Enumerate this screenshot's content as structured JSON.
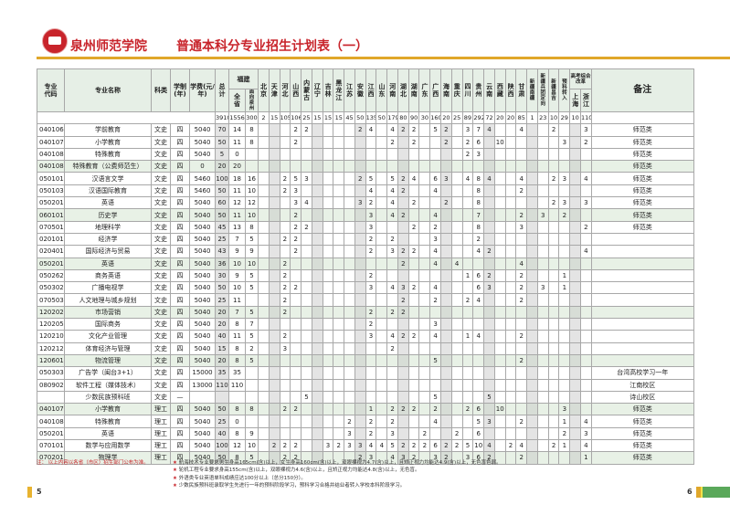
{
  "header": {
    "school": "泉州师范学院",
    "title": "普通本科分专业招生计划表（一）"
  },
  "columns": {
    "code": "专业代码",
    "name": "专业名称",
    "type": "科类",
    "years": "学制(年)",
    "fee": "学费(元/年)",
    "total": "总计",
    "fujian": "福建",
    "fujian_all": "全省",
    "fujian_qz": "面向泉州",
    "provinces": [
      "北京",
      "天津",
      "河北",
      "山西",
      "内蒙古",
      "辽宁",
      "吉林",
      "黑龙江",
      "江苏",
      "安徽",
      "江西",
      "山东",
      "河南",
      "湖北",
      "湖南",
      "广东",
      "广西",
      "海南",
      "重庆",
      "四川",
      "贵州",
      "云南",
      "西藏",
      "陕西",
      "甘肃",
      "新疆南疆",
      "新疆兵团定向",
      "新疆昌吉",
      "预科转入"
    ],
    "reform": "高考综合改革",
    "shanghai": "上海",
    "zhejiang": "浙江",
    "note": "备注"
  },
  "totals": [
    "3910",
    "1556",
    "300",
    "2",
    "15",
    "105",
    "106",
    "25",
    "15",
    "15",
    "15",
    "45",
    "50",
    "135",
    "50",
    "179",
    "80",
    "90",
    "30",
    "160",
    "20",
    "25",
    "89",
    "292",
    "72",
    "20",
    "20",
    "85",
    "1",
    "23",
    "10",
    "29",
    "10",
    "110"
  ],
  "rows": [
    {
      "code": "040106",
      "name": "学前教育",
      "type": "文史",
      "years": "四",
      "fee": "5040",
      "v": [
        "70",
        "14",
        "8",
        "",
        "",
        "",
        "2",
        "2",
        "",
        "",
        "",
        "",
        "2",
        "4",
        "",
        "4",
        "2",
        "2",
        "",
        "5",
        "2",
        "",
        "3",
        "7",
        "4",
        "",
        "",
        "4",
        "",
        "",
        "2",
        "",
        "",
        "3"
      ],
      "note": "师范类"
    },
    {
      "code": "040107",
      "name": "小学教育",
      "type": "文史",
      "years": "四",
      "fee": "5040",
      "v": [
        "50",
        "11",
        "8",
        "",
        "",
        "",
        "2",
        "",
        "",
        "",
        "",
        "",
        "",
        "",
        "",
        "2",
        "",
        "2",
        "",
        "",
        "2",
        "",
        "2",
        "6",
        "",
        "10",
        "",
        "",
        "",
        "",
        "",
        "3",
        "",
        "2"
      ],
      "note": "师范类"
    },
    {
      "code": "040108",
      "name": "特殊教育",
      "type": "文史",
      "years": "四",
      "fee": "5040",
      "v": [
        "5",
        "0",
        "",
        "",
        "",
        "",
        "",
        "",
        "",
        "",
        "",
        "",
        "",
        "",
        "",
        "",
        "",
        "",
        "",
        "",
        "",
        "",
        "2",
        "3",
        "",
        "",
        "",
        "",
        "",
        "",
        "",
        "",
        "",
        ""
      ],
      "note": "师范类"
    },
    {
      "code": "040108",
      "name": "特殊教育（公费师范生）",
      "type": "文史",
      "years": "四",
      "fee": "0",
      "v": [
        "20",
        "20",
        "",
        "",
        "",
        "",
        "",
        "",
        "",
        "",
        "",
        "",
        "",
        "",
        "",
        "",
        "",
        "",
        "",
        "",
        "",
        "",
        "",
        "",
        "",
        "",
        "",
        "",
        "",
        "",
        "",
        "",
        "",
        ""
      ],
      "note": "师范类",
      "green": true
    },
    {
      "code": "050101",
      "name": "汉语言文学",
      "type": "文史",
      "years": "四",
      "fee": "5460",
      "v": [
        "100",
        "18",
        "16",
        "",
        "",
        "2",
        "5",
        "3",
        "",
        "",
        "",
        "",
        "2",
        "5",
        "",
        "5",
        "2",
        "4",
        "",
        "6",
        "3",
        "",
        "4",
        "8",
        "4",
        "",
        "",
        "4",
        "",
        "",
        "2",
        "3",
        "",
        "4"
      ],
      "note": "师范类"
    },
    {
      "code": "050103",
      "name": "汉语国际教育",
      "type": "文史",
      "years": "四",
      "fee": "5460",
      "v": [
        "50",
        "11",
        "10",
        "",
        "",
        "2",
        "3",
        "",
        "",
        "",
        "",
        "",
        "",
        "4",
        "",
        "4",
        "2",
        "",
        "",
        "4",
        "",
        "",
        "",
        "8",
        "",
        "",
        "",
        "2",
        "",
        "",
        "",
        "",
        "",
        ""
      ],
      "note": "师范类"
    },
    {
      "code": "050201",
      "name": "英语",
      "type": "文史",
      "years": "四",
      "fee": "5040",
      "v": [
        "60",
        "12",
        "12",
        "",
        "",
        "",
        "3",
        "4",
        "",
        "",
        "",
        "",
        "3",
        "2",
        "",
        "4",
        "",
        "2",
        "",
        "",
        "2",
        "",
        "",
        "8",
        "",
        "",
        "",
        "",
        "",
        "",
        "2",
        "3",
        "",
        "3"
      ],
      "note": "师范类"
    },
    {
      "code": "060101",
      "name": "历史学",
      "type": "文史",
      "years": "四",
      "fee": "5040",
      "v": [
        "50",
        "11",
        "10",
        "",
        "",
        "",
        "2",
        "",
        "",
        "",
        "",
        "",
        "",
        "3",
        "",
        "4",
        "2",
        "",
        "",
        "4",
        "",
        "",
        "",
        "7",
        "",
        "",
        "",
        "2",
        "",
        "3",
        "",
        "2",
        "",
        ""
      ],
      "note": "师范类",
      "green": true
    },
    {
      "code": "070501",
      "name": "地理科学",
      "type": "文史",
      "years": "四",
      "fee": "5040",
      "v": [
        "45",
        "13",
        "8",
        "",
        "",
        "",
        "2",
        "2",
        "",
        "",
        "",
        "",
        "",
        "3",
        "",
        "",
        "",
        "2",
        "",
        "2",
        "",
        "",
        "",
        "8",
        "",
        "",
        "",
        "3",
        "",
        "",
        "",
        "",
        "",
        "2"
      ],
      "note": "师范类"
    },
    {
      "code": "020101",
      "name": "经济学",
      "type": "文史",
      "years": "四",
      "fee": "5040",
      "v": [
        "25",
        "7",
        "5",
        "",
        "",
        "2",
        "2",
        "",
        "",
        "",
        "",
        "",
        "",
        "2",
        "",
        "2",
        "",
        "",
        "",
        "3",
        "",
        "",
        "",
        "2",
        "",
        "",
        "",
        "",
        "",
        "",
        "",
        "",
        "",
        ""
      ],
      "note": ""
    },
    {
      "code": "020401",
      "name": "国际经济与贸易",
      "type": "文史",
      "years": "四",
      "fee": "5040",
      "v": [
        "43",
        "9",
        "9",
        "",
        "",
        "",
        "2",
        "",
        "",
        "",
        "",
        "",
        "",
        "2",
        "",
        "3",
        "2",
        "2",
        "",
        "4",
        "",
        "",
        "",
        "4",
        "2",
        "",
        "",
        "",
        "",
        "",
        "",
        "",
        "",
        "4"
      ],
      "note": ""
    },
    {
      "code": "050201",
      "name": "英语",
      "type": "文史",
      "years": "四",
      "fee": "5040",
      "v": [
        "36",
        "10",
        "10",
        "",
        "",
        "2",
        "",
        "",
        "",
        "",
        "",
        "",
        "",
        "",
        "",
        "",
        "2",
        "",
        "",
        "4",
        "",
        "4",
        "",
        "",
        "",
        "",
        "",
        "4",
        "",
        "",
        "",
        "",
        "",
        ""
      ],
      "note": "",
      "green": true
    },
    {
      "code": "050262",
      "name": "商务英语",
      "type": "文史",
      "years": "四",
      "fee": "5040",
      "v": [
        "30",
        "9",
        "5",
        "",
        "",
        "2",
        "",
        "",
        "",
        "",
        "",
        "",
        "",
        "2",
        "",
        "",
        "",
        "",
        "",
        "",
        "",
        "",
        "1",
        "6",
        "2",
        "",
        "",
        "2",
        "",
        "",
        "",
        "1",
        "",
        ""
      ],
      "note": ""
    },
    {
      "code": "050302",
      "name": "广播电视学",
      "type": "文史",
      "years": "四",
      "fee": "5040",
      "v": [
        "50",
        "10",
        "5",
        "",
        "",
        "2",
        "2",
        "",
        "",
        "",
        "",
        "",
        "",
        "3",
        "",
        "4",
        "3",
        "2",
        "",
        "4",
        "",
        "",
        "",
        "6",
        "3",
        "",
        "",
        "2",
        "",
        "3",
        "",
        "1",
        "",
        ""
      ],
      "note": ""
    },
    {
      "code": "070503",
      "name": "人文地理与城乡规划",
      "type": "文史",
      "years": "四",
      "fee": "5040",
      "v": [
        "25",
        "11",
        "",
        "",
        "",
        "2",
        "",
        "",
        "",
        "",
        "",
        "",
        "",
        "",
        "",
        "",
        "2",
        "",
        "",
        "2",
        "",
        "",
        "2",
        "4",
        "",
        "",
        "",
        "2",
        "",
        "",
        "",
        "",
        "",
        ""
      ],
      "note": ""
    },
    {
      "code": "120202",
      "name": "市场营销",
      "type": "文史",
      "years": "四",
      "fee": "5040",
      "v": [
        "20",
        "7",
        "5",
        "",
        "",
        "2",
        "",
        "",
        "",
        "",
        "",
        "",
        "",
        "2",
        "",
        "2",
        "2",
        "",
        "",
        "",
        "",
        "",
        "",
        "",
        "",
        "",
        "",
        "",
        "",
        "",
        "",
        "",
        "",
        ""
      ],
      "note": "",
      "green": true
    },
    {
      "code": "120205",
      "name": "国际商务",
      "type": "文史",
      "years": "四",
      "fee": "5040",
      "v": [
        "20",
        "8",
        "7",
        "",
        "",
        "",
        "",
        "",
        "",
        "",
        "",
        "",
        "",
        "2",
        "",
        "",
        "",
        "",
        "",
        "3",
        "",
        "",
        "",
        "",
        "",
        "",
        "",
        "",
        "",
        "",
        "",
        "",
        "",
        ""
      ],
      "note": ""
    },
    {
      "code": "120210",
      "name": "文化产业管理",
      "type": "文史",
      "years": "四",
      "fee": "5040",
      "v": [
        "40",
        "11",
        "5",
        "",
        "",
        "2",
        "",
        "",
        "",
        "",
        "",
        "",
        "",
        "3",
        "",
        "4",
        "2",
        "2",
        "",
        "4",
        "",
        "",
        "1",
        "4",
        "",
        "",
        "",
        "2",
        "",
        "",
        "",
        "",
        "",
        ""
      ],
      "note": ""
    },
    {
      "code": "120212",
      "name": "体育经济与管理",
      "type": "文史",
      "years": "四",
      "fee": "5040",
      "v": [
        "15",
        "8",
        "2",
        "",
        "",
        "3",
        "",
        "",
        "",
        "",
        "",
        "",
        "",
        "",
        "",
        "2",
        "",
        "",
        "",
        "",
        "",
        "",
        "",
        "",
        "",
        "",
        "",
        "",
        "",
        "",
        "",
        "",
        "",
        ""
      ],
      "note": ""
    },
    {
      "code": "120601",
      "name": "物流管理",
      "type": "文史",
      "years": "四",
      "fee": "5040",
      "v": [
        "20",
        "8",
        "5",
        "",
        "",
        "",
        "",
        "",
        "",
        "",
        "",
        "",
        "",
        "",
        "",
        "",
        "",
        "",
        "",
        "5",
        "",
        "",
        "",
        "",
        "",
        "",
        "",
        "2",
        "",
        "",
        "",
        "",
        "",
        ""
      ],
      "note": "",
      "green": true
    },
    {
      "code": "050303",
      "name": "广告学（闽台3+1）",
      "type": "文史",
      "years": "四",
      "fee": "15000",
      "v": [
        "35",
        "35",
        "",
        "",
        "",
        "",
        "",
        "",
        "",
        "",
        "",
        "",
        "",
        "",
        "",
        "",
        "",
        "",
        "",
        "",
        "",
        "",
        "",
        "",
        "",
        "",
        "",
        "",
        "",
        "",
        "",
        "",
        "",
        ""
      ],
      "note": "台湾高校学习一年"
    },
    {
      "code": "080902",
      "name": "软件工程（媒体技术）",
      "type": "文史",
      "years": "四",
      "fee": "13000",
      "v": [
        "110",
        "110",
        "",
        "",
        "",
        "",
        "",
        "",
        "",
        "",
        "",
        "",
        "",
        "",
        "",
        "",
        "",
        "",
        "",
        "",
        "",
        "",
        "",
        "",
        "",
        "",
        "",
        "",
        "",
        "",
        "",
        "",
        "",
        ""
      ],
      "note": "江南校区"
    },
    {
      "code": "",
      "name": "少数民族预科班",
      "type": "文史",
      "years": "—",
      "fee": "",
      "v": [
        "",
        "",
        "",
        "",
        "",
        "",
        "",
        "5",
        "",
        "",
        "",
        "",
        "",
        "",
        "",
        "",
        "",
        "",
        "",
        "5",
        "",
        "",
        "",
        "",
        "5",
        "",
        "",
        "",
        "",
        "",
        "",
        "",
        "",
        ""
      ],
      "note": "诗山校区"
    },
    {
      "code": "040107",
      "name": "小学教育",
      "type": "理工",
      "years": "四",
      "fee": "5040",
      "v": [
        "50",
        "8",
        "8",
        "",
        "",
        "2",
        "2",
        "",
        "",
        "",
        "",
        "",
        "",
        "1",
        "",
        "2",
        "2",
        "2",
        "",
        "2",
        "",
        "",
        "2",
        "6",
        "",
        "10",
        "",
        "",
        "",
        "",
        "",
        "3",
        "",
        ""
      ],
      "note": "师范类",
      "green": true
    },
    {
      "code": "040108",
      "name": "特殊教育",
      "type": "理工",
      "years": "四",
      "fee": "5040",
      "v": [
        "25",
        "0",
        "",
        "",
        "",
        "",
        "",
        "",
        "",
        "",
        "",
        "2",
        "",
        "2",
        "",
        "2",
        "",
        "",
        "",
        "4",
        "",
        "",
        "",
        "5",
        "3",
        "",
        "",
        "2",
        "",
        "",
        "",
        "1",
        "",
        "4"
      ],
      "note": "师范类"
    },
    {
      "code": "050201",
      "name": "英语",
      "type": "理工",
      "years": "四",
      "fee": "5040",
      "v": [
        "40",
        "8",
        "9",
        "",
        "",
        "",
        "",
        "",
        "",
        "",
        "",
        "3",
        "",
        "2",
        "",
        "3",
        "",
        "",
        "2",
        "",
        "",
        "2",
        "",
        "6",
        "",
        "",
        "",
        "",
        "",
        "",
        "",
        "2",
        "",
        "3"
      ],
      "note": "师范类"
    },
    {
      "code": "070101",
      "name": "数学与应用数学",
      "type": "理工",
      "years": "四",
      "fee": "5040",
      "v": [
        "100",
        "12",
        "10",
        "",
        "2",
        "2",
        "2",
        "",
        "",
        "3",
        "2",
        "3",
        "3",
        "4",
        "4",
        "5",
        "2",
        "2",
        "2",
        "6",
        "2",
        "2",
        "5",
        "10",
        "4",
        "",
        "2",
        "4",
        "",
        "",
        "2",
        "1",
        "",
        "4"
      ],
      "note": "师范类"
    },
    {
      "code": "070201",
      "name": "物理学",
      "type": "理工",
      "years": "四",
      "fee": "5040",
      "v": [
        "50",
        "8",
        "5",
        "",
        "",
        "2",
        "2",
        "",
        "",
        "",
        "",
        "",
        "2",
        "3",
        "",
        "4",
        "3",
        "2",
        "",
        "3",
        "2",
        "",
        "3",
        "6",
        "2",
        "",
        "",
        "2",
        "",
        "",
        "",
        "",
        "",
        "1"
      ],
      "note": "师范类",
      "green": true
    }
  ],
  "footnotes": {
    "lead": "注：  以上内容以各省（市区）招生部门公布为准。",
    "items": [
      "航海技术专业要求男生身高165cm(含)以上，女生身高160cm(含)以上，双眼裸视力4.7(含)以上，且矫正视力均能达4.9(含)以上，无色盲色弱。",
      "轮机工程专业要求身高155cm(含)以上，双眼裸视力4.6(含)以上，且矫正视力均能达4.8(含)以上，无色盲。",
      "外语类专业英语单科成绩应达100分以上（总分150分）。",
      "少数民族预科班录取学生先进行一年的预科阶段学习，预科学习合格并结业者转入学校本科阶段学习。"
    ]
  },
  "pages": {
    "left": "5",
    "right": "6"
  },
  "colors": {
    "brand_red": "#c8242b",
    "gold": "#e0a72a",
    "header_green": "#e6efe6",
    "row_green": "#e8f1e6",
    "page_green": "#5aa85a"
  }
}
